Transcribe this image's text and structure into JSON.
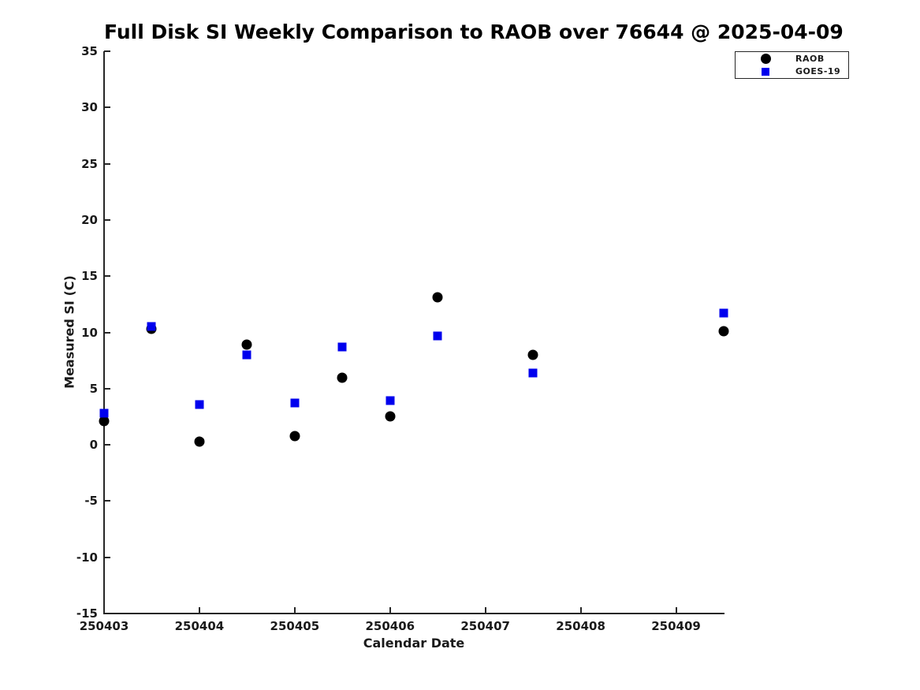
{
  "chart_data": {
    "type": "scatter",
    "title": "Full Disk SI Weekly Comparison to RAOB over 76644 @ 2025-04-09",
    "xlabel": "Calendar Date",
    "ylabel": "Measured SI (C)",
    "xlim": [
      250403,
      250409.5
    ],
    "ylim": [
      -15,
      35
    ],
    "x_ticks": [
      250403,
      250404,
      250405,
      250406,
      250407,
      250408,
      250409
    ],
    "y_ticks": [
      35,
      30,
      25,
      20,
      15,
      10,
      5,
      0,
      -5,
      -10,
      -15
    ],
    "grid": false,
    "legend_position": "top-right",
    "colors": {
      "raob": "#000000",
      "goes19": "#0000ee",
      "axis": "#262626",
      "title_text": "#000000"
    },
    "series": [
      {
        "name": "RAOB",
        "marker": "circle",
        "color": "#000000",
        "marker_size": 13,
        "x": [
          250403,
          250403.5,
          250404,
          250404.5,
          250405,
          250405.5,
          250406,
          250406.5,
          250407.5,
          250409.5
        ],
        "y": [
          2.1,
          10.3,
          0.3,
          8.9,
          0.8,
          6.0,
          2.5,
          13.1,
          8.0,
          10.1
        ]
      },
      {
        "name": "GOES-19",
        "marker": "square",
        "color": "#0000ee",
        "marker_size": 11,
        "x": [
          250403,
          250403.5,
          250404,
          250404.5,
          250405,
          250405.5,
          250406,
          250406.5,
          250407.5,
          250409.5
        ],
        "y": [
          2.8,
          10.5,
          3.6,
          8.0,
          3.7,
          8.7,
          3.9,
          9.7,
          6.4,
          11.7
        ]
      }
    ]
  }
}
